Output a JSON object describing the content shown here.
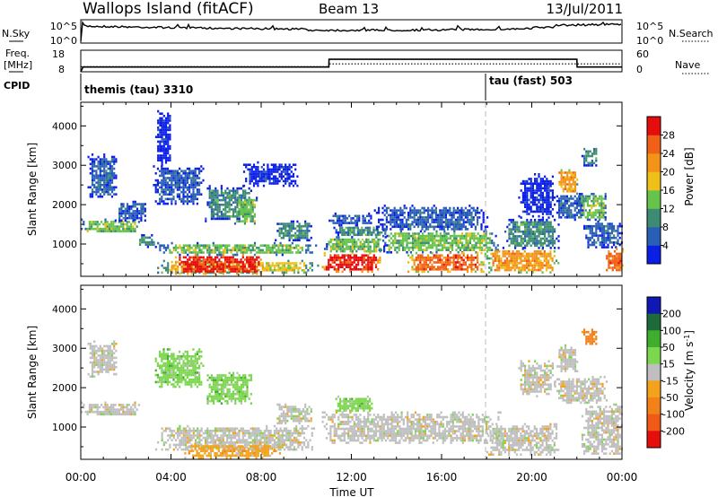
{
  "header": {
    "station": "Wallops Island (fitACF)",
    "beam": "Beam 13",
    "date": "13/Jul/2011"
  },
  "status_panels": {
    "nsky": {
      "label": "N.Sky",
      "ticks": [
        "10^5",
        "10^0"
      ]
    },
    "nsearch": {
      "label": "N.Search",
      "ticks": [
        "10^5",
        "10^0"
      ]
    },
    "freq": {
      "label_top": "Freq.",
      "label_unit": "[MHz]",
      "ticks": [
        "18",
        "8"
      ]
    },
    "nave": {
      "label": "Nave",
      "ticks": [
        "60",
        "0"
      ]
    },
    "cpid": {
      "label": "CPID",
      "segments": [
        {
          "text": "themis (tau) 3310",
          "start_hour": 0
        },
        {
          "text": "tau (fast) 503",
          "start_hour": 18
        }
      ]
    }
  },
  "chart_data": [
    {
      "type": "line",
      "name": "status",
      "x_range_hours": [
        0,
        24
      ],
      "freq_mhz": {
        "ylim": [
          8,
          18
        ],
        "x": [
          0,
          0.1,
          11,
          11.01,
          22,
          22.01,
          24
        ],
        "y": [
          8,
          10.2,
          10.2,
          13.8,
          13.8,
          10.2,
          10.2
        ]
      },
      "nave": {
        "ylim": [
          0,
          60
        ],
        "x": [
          0,
          11,
          11.01,
          24
        ],
        "y": [
          14,
          14,
          22,
          22
        ]
      }
    },
    {
      "type": "heatmap",
      "name": "power",
      "xlabel": "Time UT",
      "ylabel": "Slant Range [km]",
      "xlim": [
        0,
        24
      ],
      "ylim": [
        180,
        4600
      ],
      "x_ticks": [
        "00:00",
        "04:00",
        "08:00",
        "12:00",
        "16:00",
        "20:00",
        "00:00"
      ],
      "y_ticks": [
        1000,
        2000,
        3000,
        4000
      ],
      "colorbar": {
        "label": "Power [dB]",
        "ticks": [
          "4",
          "8",
          "12",
          "16",
          "20",
          "24",
          "28"
        ],
        "colors": [
          "#0a1ee6",
          "#2a5fb8",
          "#3e8b73",
          "#66c44a",
          "#f0c01a",
          "#f39419",
          "#f06016",
          "#e60d0d"
        ]
      },
      "regions": [
        {
          "t0": 0.0,
          "t1": 2.6,
          "r0": 1300,
          "r1": 1650,
          "v": 3
        },
        {
          "t0": 0.3,
          "t1": 1.6,
          "r0": 2200,
          "r1": 3300,
          "v": 1
        },
        {
          "t0": 1.5,
          "t1": 2.9,
          "r0": 1600,
          "r1": 2100,
          "v": 1
        },
        {
          "t0": 2.5,
          "t1": 3.3,
          "r0": 950,
          "r1": 1250,
          "v": 2
        },
        {
          "t0": 3.3,
          "t1": 4.0,
          "r0": 3000,
          "r1": 4400,
          "v": 0
        },
        {
          "t0": 3.2,
          "t1": 5.4,
          "r0": 2000,
          "r1": 3000,
          "v": 1
        },
        {
          "t0": 3.3,
          "t1": 10.5,
          "r0": 750,
          "r1": 1050,
          "v": 3
        },
        {
          "t0": 3.3,
          "t1": 10.5,
          "r0": 280,
          "r1": 600,
          "v": 4
        },
        {
          "t0": 4.0,
          "t1": 8.2,
          "r0": 250,
          "r1": 750,
          "v": 7
        },
        {
          "t0": 5.5,
          "t1": 7.6,
          "r0": 1600,
          "r1": 2500,
          "v": 2
        },
        {
          "t0": 6.8,
          "t1": 7.8,
          "r0": 1500,
          "r1": 2200,
          "v": 3
        },
        {
          "t0": 7.2,
          "t1": 9.6,
          "r0": 2500,
          "r1": 3100,
          "v": 0
        },
        {
          "t0": 8.6,
          "t1": 10.3,
          "r0": 1100,
          "r1": 1600,
          "v": 2
        },
        {
          "t0": 10.6,
          "t1": 13.3,
          "r0": 300,
          "r1": 800,
          "v": 7
        },
        {
          "t0": 10.7,
          "t1": 13.5,
          "r0": 800,
          "r1": 1200,
          "v": 3
        },
        {
          "t0": 11.2,
          "t1": 13.5,
          "r0": 1200,
          "r1": 1500,
          "v": 2
        },
        {
          "t0": 10.9,
          "t1": 12.9,
          "r0": 1500,
          "r1": 1800,
          "v": 1
        },
        {
          "t0": 13.2,
          "t1": 18.6,
          "r0": 800,
          "r1": 1350,
          "v": 3
        },
        {
          "t0": 14.4,
          "t1": 17.9,
          "r0": 300,
          "r1": 800,
          "v": 6
        },
        {
          "t0": 13.0,
          "t1": 18.0,
          "r0": 1350,
          "r1": 2000,
          "v": 1
        },
        {
          "t0": 17.9,
          "t1": 21.2,
          "r0": 300,
          "r1": 900,
          "v": 5
        },
        {
          "t0": 18.7,
          "t1": 21.2,
          "r0": 900,
          "r1": 1700,
          "v": 2
        },
        {
          "t0": 19.4,
          "t1": 21.0,
          "r0": 1700,
          "r1": 2800,
          "v": 0
        },
        {
          "t0": 21.1,
          "t1": 22.0,
          "r0": 2300,
          "r1": 2900,
          "v": 5
        },
        {
          "t0": 21.0,
          "t1": 22.3,
          "r0": 1600,
          "r1": 2300,
          "v": 1
        },
        {
          "t0": 22.0,
          "t1": 23.3,
          "r0": 1600,
          "r1": 2300,
          "v": 3
        },
        {
          "t0": 22.2,
          "t1": 22.9,
          "r0": 3000,
          "r1": 3500,
          "v": 2
        },
        {
          "t0": 22.2,
          "t1": 24.0,
          "r0": 900,
          "r1": 1600,
          "v": 1
        },
        {
          "t0": 23.2,
          "t1": 24.0,
          "r0": 300,
          "r1": 900,
          "v": 6
        }
      ]
    },
    {
      "type": "heatmap",
      "name": "velocity",
      "xlabel": "Time UT",
      "ylabel": "Slant Range [km]",
      "xlim": [
        0,
        24
      ],
      "ylim": [
        180,
        4600
      ],
      "x_ticks": [
        "00:00",
        "04:00",
        "08:00",
        "12:00",
        "16:00",
        "20:00",
        "00:00"
      ],
      "y_ticks": [
        1000,
        2000,
        3000,
        4000
      ],
      "colorbar": {
        "label": "Velocity [m s^-1]",
        "ticks": [
          "200",
          "100",
          "50",
          "15",
          "-15",
          "-50",
          "-100",
          "-200"
        ],
        "colors": [
          "#1018b4",
          "#1f6a3a",
          "#3fae2f",
          "#7cd64e",
          "#bfbfbf",
          "#f3a21c",
          "#f3811a",
          "#f05a16",
          "#e60d0d"
        ]
      },
      "regions": [
        {
          "t0": 0.0,
          "t1": 2.6,
          "r0": 1300,
          "r1": 1650,
          "v": 4
        },
        {
          "t0": 0.3,
          "t1": 1.6,
          "r0": 2300,
          "r1": 3200,
          "v": 4
        },
        {
          "t0": 3.2,
          "t1": 5.4,
          "r0": 2000,
          "r1": 3000,
          "v": 3
        },
        {
          "t0": 3.3,
          "t1": 10.5,
          "r0": 400,
          "r1": 1050,
          "v": 4
        },
        {
          "t0": 4.5,
          "t1": 8.8,
          "r0": 230,
          "r1": 600,
          "v": 5
        },
        {
          "t0": 5.5,
          "t1": 7.6,
          "r0": 1600,
          "r1": 2400,
          "v": 3
        },
        {
          "t0": 8.6,
          "t1": 10.3,
          "r0": 1100,
          "r1": 1600,
          "v": 4
        },
        {
          "t0": 10.6,
          "t1": 18.6,
          "r0": 600,
          "r1": 1400,
          "v": 4
        },
        {
          "t0": 11.2,
          "t1": 13.0,
          "r0": 1400,
          "r1": 1800,
          "v": 3
        },
        {
          "t0": 17.9,
          "t1": 21.2,
          "r0": 300,
          "r1": 1100,
          "v": 4
        },
        {
          "t0": 19.4,
          "t1": 21.0,
          "r0": 1800,
          "r1": 2700,
          "v": 4
        },
        {
          "t0": 21.1,
          "t1": 22.0,
          "r0": 2400,
          "r1": 3100,
          "v": 4
        },
        {
          "t0": 22.2,
          "t1": 22.9,
          "r0": 3100,
          "r1": 3500,
          "v": 6
        },
        {
          "t0": 21.0,
          "t1": 23.3,
          "r0": 1600,
          "r1": 2300,
          "v": 4
        },
        {
          "t0": 22.2,
          "t1": 24.0,
          "r0": 300,
          "r1": 1600,
          "v": 4
        }
      ]
    }
  ]
}
